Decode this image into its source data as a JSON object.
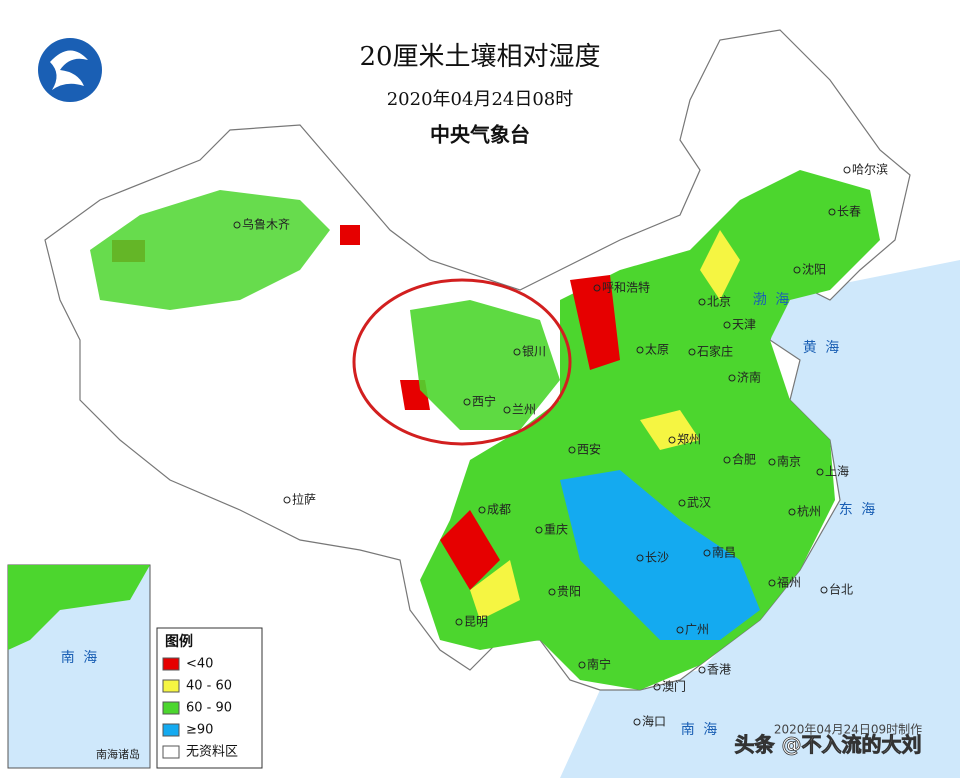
{
  "header": {
    "title": "20厘米土壤相对湿度",
    "date": "2020年04月24日08时",
    "agency": "中央气象台"
  },
  "legend": {
    "title": "图例",
    "items": [
      {
        "label": "<40",
        "color": "#e60000"
      },
      {
        "label": "40 - 60",
        "color": "#f5f542"
      },
      {
        "label": "60 - 90",
        "color": "#4cd62e"
      },
      {
        "label": "≥90",
        "color": "#14aaf0"
      },
      {
        "label": "无资料区",
        "color": "#ffffff"
      }
    ]
  },
  "cities": [
    "乌鲁木齐",
    "哈尔滨",
    "长春",
    "沈阳",
    "呼和浩特",
    "北京",
    "天津",
    "银川",
    "太原",
    "石家庄",
    "济南",
    "西宁",
    "兰州",
    "郑州",
    "西安",
    "合肥",
    "南京",
    "上海",
    "拉萨",
    "成都",
    "武汉",
    "杭州",
    "重庆",
    "长沙",
    "南昌",
    "贵阳",
    "福州",
    "台北",
    "昆明",
    "广州",
    "南宁",
    "香港",
    "澳门",
    "海口"
  ],
  "seas": [
    "黄 海",
    "东 海",
    "南 海",
    "渤 海"
  ],
  "inset": {
    "label": "南海诸岛",
    "sea": "南 海"
  },
  "footer": {
    "produced": "2020年04月24日09时制作",
    "watermark": "头条 @不入流的大刘"
  }
}
